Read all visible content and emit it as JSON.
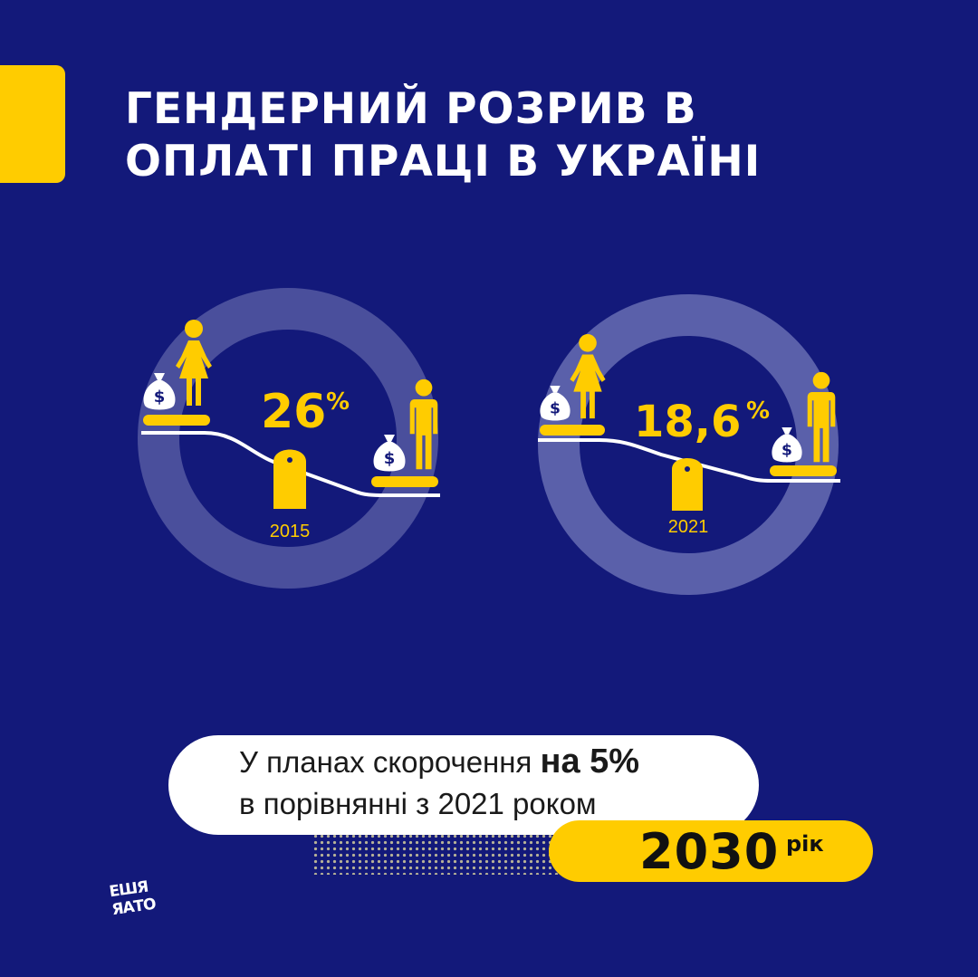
{
  "header": {
    "title_line1": "ГЕНДЕРНИЙ РОЗРИВ В",
    "title_line2": "ОПЛАТІ ПРАЦІ В УКРАЇНІ"
  },
  "gauges": [
    {
      "year": "2015",
      "value": "26",
      "unit": "%"
    },
    {
      "year": "2021",
      "value": "18,6",
      "unit": "%"
    }
  ],
  "plan": {
    "line1_prefix": "У планах скорочення ",
    "line1_bold": "на 5%",
    "line2": "в порівнянні з 2021 роком"
  },
  "target": {
    "year": "2030",
    "unit": "рік"
  },
  "logo": {
    "line1": "ЕШЯ",
    "line2": "ЯАТО"
  },
  "colors": {
    "background": "#13197a",
    "accent": "#ffcc00",
    "ring": "#4a4f9c",
    "white": "#ffffff"
  },
  "icons": [
    "money-bag-icon",
    "woman-icon",
    "man-icon",
    "fulcrum-icon"
  ]
}
